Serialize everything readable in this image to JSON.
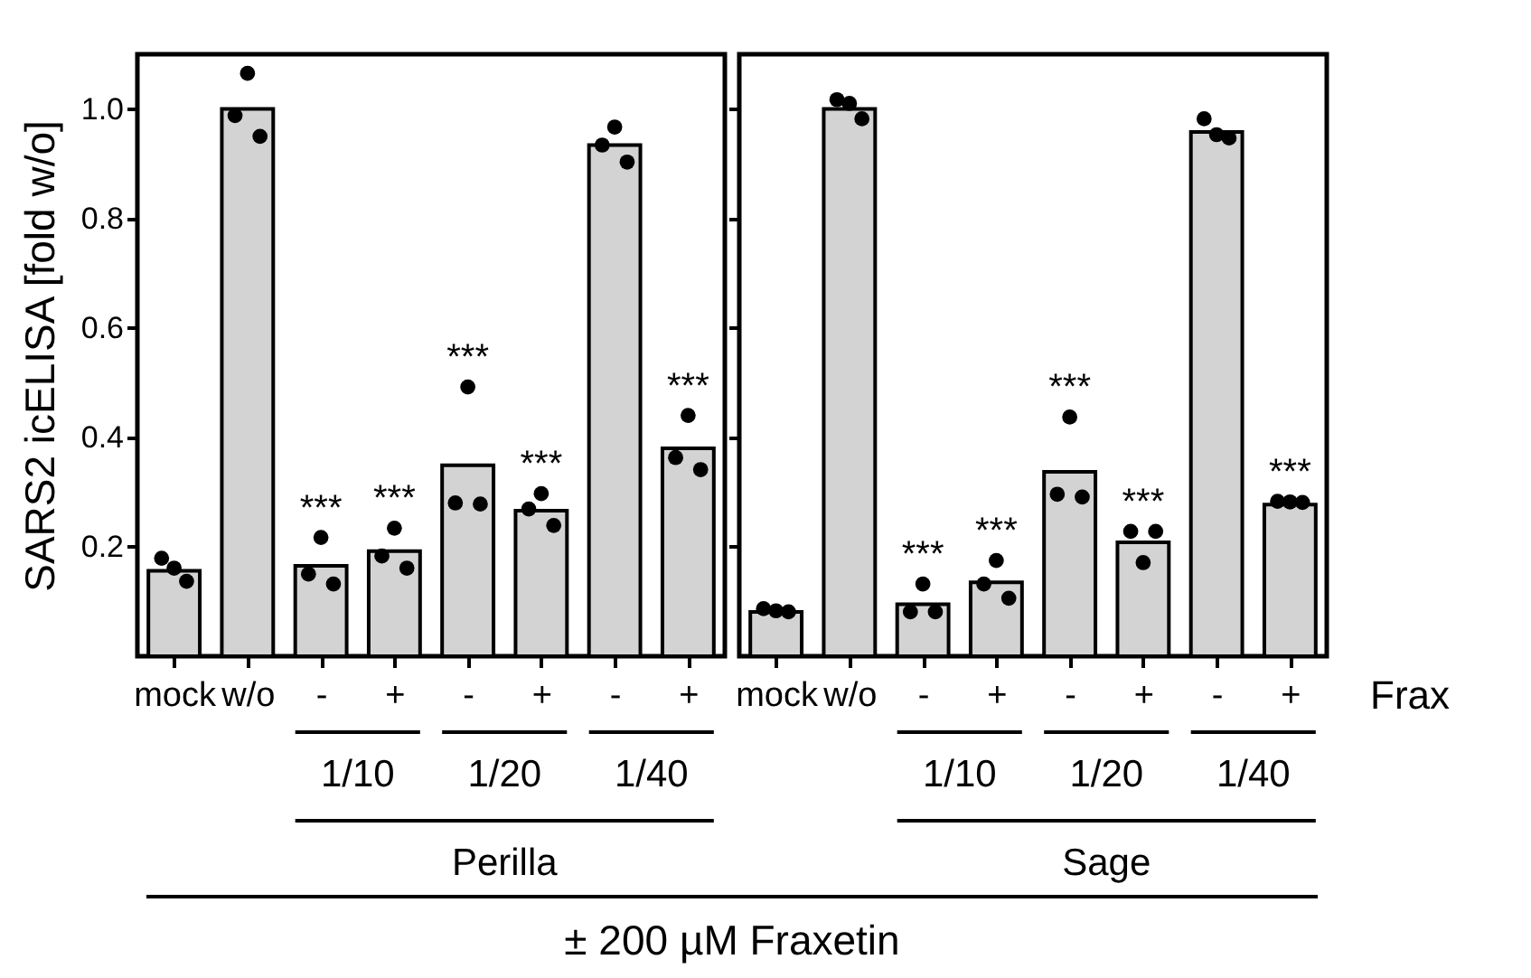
{
  "chart_data": [
    {
      "type": "bar",
      "ylabel": "SARS2 icELISA [fold w/o]",
      "xlabel": "± 200 µM Fraxetin",
      "categories": [
        "mock",
        "w/o",
        "-",
        "+",
        "-",
        "+",
        "-",
        "+"
      ],
      "ylim": [
        0,
        1.1
      ],
      "yticks": [
        0.2,
        0.4,
        0.6,
        0.8,
        {
          "value": 1,
          "label": "1.0"
        }
      ],
      "grid": false,
      "series": [
        {
          "color": "#d3d3d3",
          "values": [
            0.156,
            1.0,
            0.165,
            0.192,
            0.349,
            0.266,
            0.934,
            0.38
          ]
        },
        {
          "type": "scatter",
          "color": "#000000",
          "values": [
            0.179,
            0.988,
            0.15,
            0.183,
            0.28,
            0.269,
            0.934,
            0.363
          ]
        },
        {
          "type": "scatter",
          "color": "#000000",
          "values": [
            0.161,
            1.065,
            0.217,
            0.234,
            0.492,
            0.297,
            0.967,
            0.44
          ],
          "value_labels": [
            null,
            null,
            "***",
            "***",
            "***",
            "***",
            null,
            "***"
          ]
        },
        {
          "type": "scatter",
          "color": "#000000",
          "values": [
            0.137,
            0.95,
            0.132,
            0.161,
            0.278,
            0.239,
            0.903,
            0.341
          ]
        }
      ],
      "annotations": [
        "1/10",
        "1/20",
        "1/40",
        "Perilla"
      ]
    },
    {
      "type": "bar",
      "categories": [
        "mock",
        "w/o",
        "-",
        "+",
        "-",
        "+",
        "-",
        "+"
      ],
      "ylim": [
        0,
        1.1
      ],
      "yticks": [
        0.2,
        0.4,
        0.6,
        0.8,
        1
      ],
      "tick_labels": "x",
      "grid": false,
      "series": [
        {
          "color": "#d3d3d3",
          "values": [
            0.081,
            1.0,
            0.095,
            0.135,
            0.337,
            0.208,
            0.958,
            0.277
          ]
        },
        {
          "type": "scatter",
          "color": "#000000",
          "values": [
            0.087,
            1.017,
            0.081,
            0.132,
            0.296,
            0.228,
            0.982,
            0.283
          ],
          "value_labels": [
            null,
            null,
            null,
            null,
            null,
            "***",
            null,
            "***"
          ]
        },
        {
          "type": "scatter",
          "color": "#000000",
          "values": [
            0.083,
            1.01,
            0.132,
            0.175,
            0.437,
            0.171,
            0.953,
            0.282
          ],
          "value_labels": [
            null,
            null,
            "***",
            "***",
            "***",
            null,
            null,
            null
          ]
        },
        {
          "type": "scatter",
          "color": "#000000",
          "values": [
            0.081,
            0.982,
            0.081,
            0.106,
            0.291,
            0.228,
            0.947,
            0.281
          ]
        }
      ],
      "annotations": [
        "1/10",
        "1/20",
        "1/40",
        "Sage",
        "Frax"
      ]
    }
  ]
}
